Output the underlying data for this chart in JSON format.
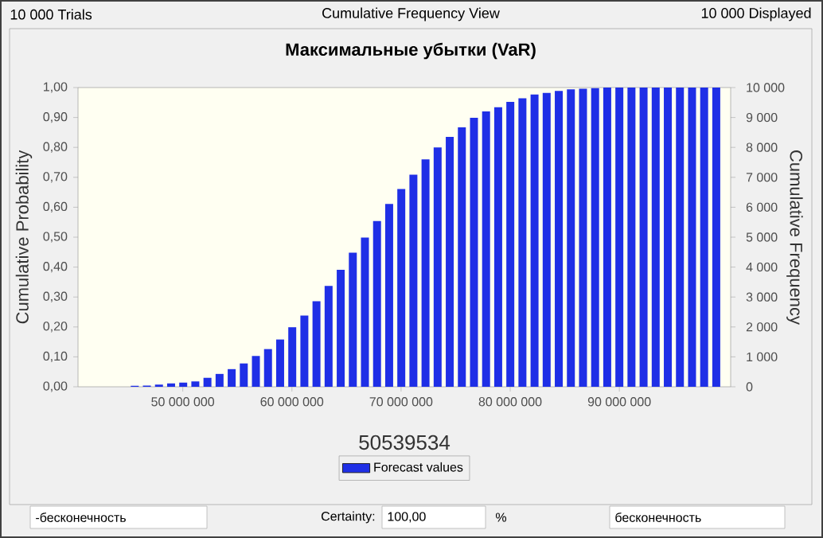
{
  "chart_data": {
    "type": "bar",
    "title": "Максимальные убытки (VaR)",
    "xlabel": "50539534",
    "ylabel": "Cumulative Probability",
    "y2label": "Cumulative Frequency",
    "x": [
      45600000,
      46710000,
      47820000,
      48930000,
      50040000,
      51150000,
      52260000,
      53370000,
      54480000,
      55590000,
      56700000,
      57810000,
      58920000,
      60030000,
      61140000,
      62250000,
      63360000,
      64470000,
      65580000,
      66690000,
      67800000,
      68910000,
      70020000,
      71130000,
      72240000,
      73350000,
      74460000,
      75570000,
      76680000,
      77790000,
      78900000,
      80010000,
      81120000,
      82230000,
      83340000,
      84450000,
      85560000,
      86670000,
      87780000,
      88890000,
      90000000,
      91110000,
      92220000,
      93330000,
      94440000,
      95550000,
      96660000,
      97770000,
      98880000
    ],
    "series": [
      {
        "name": "Forecast values",
        "color": "#1f2fe6",
        "values": [
          0.003,
          0.004,
          0.007,
          0.011,
          0.014,
          0.018,
          0.03,
          0.043,
          0.059,
          0.078,
          0.103,
          0.126,
          0.158,
          0.199,
          0.238,
          0.286,
          0.337,
          0.391,
          0.448,
          0.499,
          0.554,
          0.611,
          0.661,
          0.709,
          0.76,
          0.8,
          0.835,
          0.867,
          0.899,
          0.92,
          0.934,
          0.952,
          0.964,
          0.977,
          0.982,
          0.989,
          0.994,
          0.996,
          0.998,
          1.0,
          1.0,
          1.0,
          1.0,
          1.0,
          1.0,
          1.0,
          1.0,
          1.0,
          1.0
        ]
      }
    ],
    "xlim": [
      40400000,
      100200000
    ],
    "xticks": [
      {
        "value": 50000000,
        "label": "50 000 000"
      },
      {
        "value": 60000000,
        "label": "60 000 000"
      },
      {
        "value": 70000000,
        "label": "70 000 000"
      },
      {
        "value": 80000000,
        "label": "80 000 000"
      },
      {
        "value": 90000000,
        "label": "90 000 000"
      }
    ],
    "ylim": [
      0,
      1
    ],
    "yticks": [
      {
        "value": 0,
        "label": "0,00"
      },
      {
        "value": 0.1,
        "label": "0,10"
      },
      {
        "value": 0.2,
        "label": "0,20"
      },
      {
        "value": 0.3,
        "label": "0,30"
      },
      {
        "value": 0.4,
        "label": "0,40"
      },
      {
        "value": 0.5,
        "label": "0,50"
      },
      {
        "value": 0.6,
        "label": "0,60"
      },
      {
        "value": 0.7,
        "label": "0,70"
      },
      {
        "value": 0.8,
        "label": "0,80"
      },
      {
        "value": 0.9,
        "label": "0,90"
      },
      {
        "value": 1,
        "label": "1,00"
      }
    ],
    "y2lim": [
      0,
      10000
    ],
    "y2ticks": [
      0,
      {
        "value": 1000,
        "label": "1 000"
      },
      {
        "value": 2000,
        "label": "2 000"
      },
      {
        "value": 3000,
        "label": "3 000"
      },
      {
        "value": 4000,
        "label": "4 000"
      },
      {
        "value": 5000,
        "label": "5 000"
      },
      {
        "value": 6000,
        "label": "6 000"
      },
      {
        "value": 7000,
        "label": "7 000"
      },
      {
        "value": 8000,
        "label": "8 000"
      },
      {
        "value": 9000,
        "label": "9 000"
      },
      {
        "value": 10000,
        "label": "10 000"
      }
    ],
    "legend": "bottom",
    "annotations": [
      "10 000 Trials",
      "Cumulative Frequency View",
      "10 000 Displayed",
      "-бесконечность",
      "Certainty:",
      "100,00",
      "%",
      "бесконечность"
    ]
  }
}
